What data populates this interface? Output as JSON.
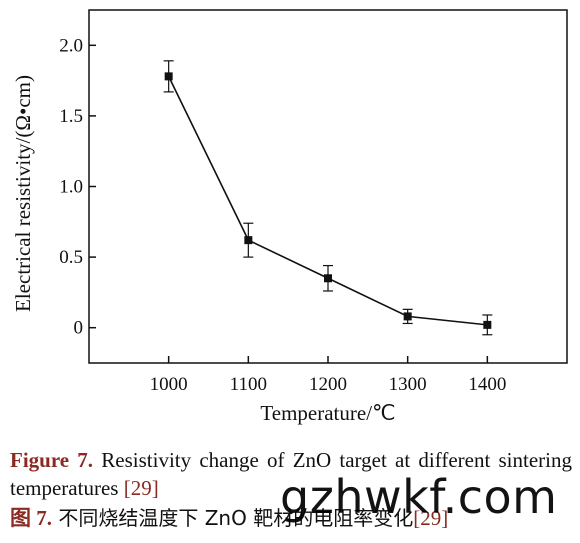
{
  "chart_data": {
    "type": "line",
    "xlabel": "Temperature/℃",
    "ylabel": "Electrical resistivity/(Ω•cm)",
    "x": [
      1000,
      1100,
      1200,
      1300,
      1400
    ],
    "series": [
      {
        "values": [
          1.78,
          0.62,
          0.35,
          0.08,
          0.02
        ],
        "error": [
          0.11,
          0.12,
          0.09,
          0.05,
          0.07
        ]
      }
    ],
    "xticks": [
      "1000",
      "1100",
      "1200",
      "1300",
      "1400"
    ],
    "yticks": [
      "0",
      "0.5",
      "1.0",
      "1.5",
      "2.0"
    ],
    "xlim": [
      900,
      1500
    ],
    "ylim": [
      -0.25,
      2.25
    ],
    "grid": false,
    "marker": "square",
    "line_color": "#111111"
  },
  "caption": {
    "figure_label": "Figure 7.",
    "text": " Resistivity change of ZnO target at different sintering temperatures ",
    "ref": "[29]",
    "zh_label": "图 7.",
    "zh_text": " 不同烧结温度下 ZnO 靶材的电阻率变化",
    "zh_ref": "[29]"
  },
  "watermark": "gzhwkf.com"
}
